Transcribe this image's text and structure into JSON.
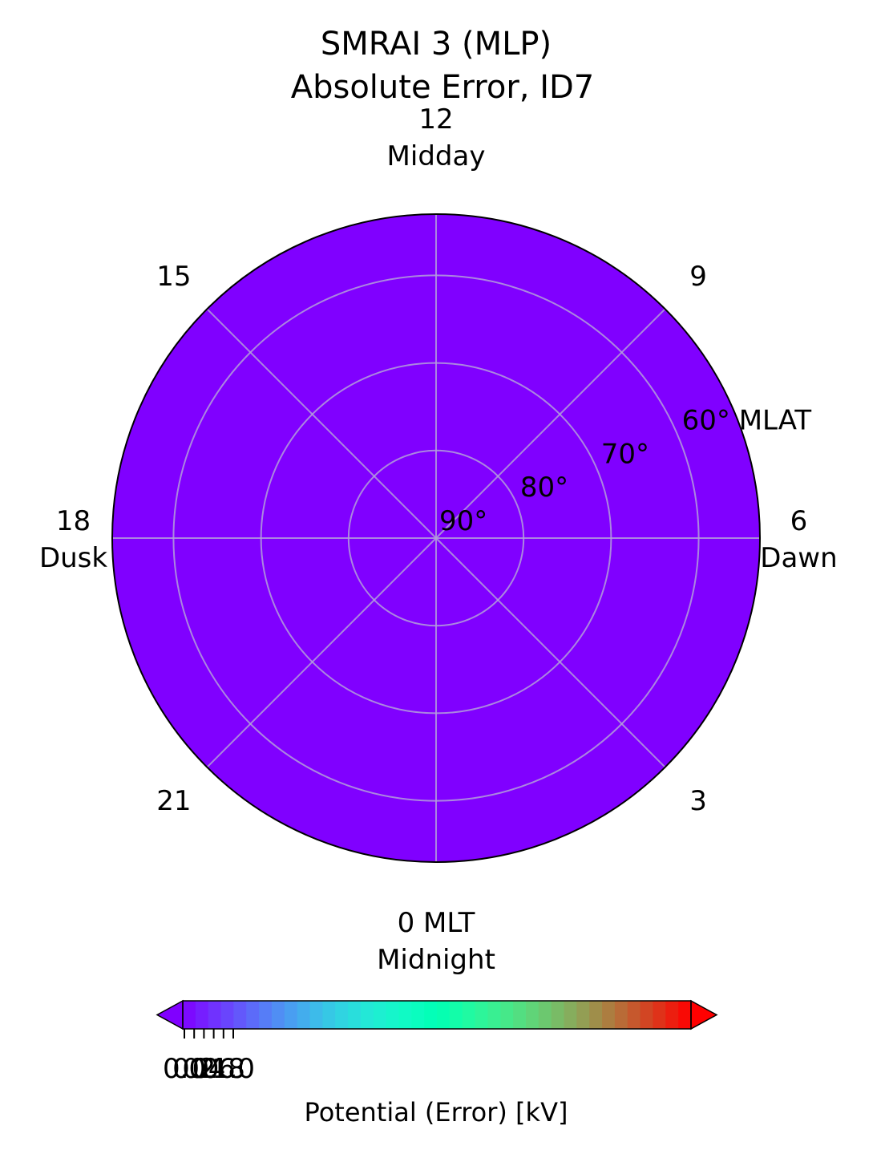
{
  "chart_data": {
    "type": "heatmap",
    "title_line1": "SMRAI 3 (MLP)",
    "title_line2": "Absolute Error, ID7",
    "fill_color": "#8000ff",
    "grid_color": "#b39ddb",
    "lat_rings": [
      {
        "value": 90,
        "label": "90°"
      },
      {
        "value": 80,
        "label": "80°"
      },
      {
        "value": 70,
        "label": "70°"
      },
      {
        "value": 60,
        "label": "60° MLAT"
      }
    ],
    "lat_range": [
      90,
      53
    ],
    "mlt_labels": [
      {
        "mlt": 12,
        "text": "12",
        "sub": "Midday"
      },
      {
        "mlt": 9,
        "text": "9",
        "sub": ""
      },
      {
        "mlt": 6,
        "text": "6",
        "sub": "Dawn"
      },
      {
        "mlt": 3,
        "text": "3",
        "sub": ""
      },
      {
        "mlt": 0,
        "text": "0 MLT",
        "sub": "Midnight"
      },
      {
        "mlt": 21,
        "text": "21",
        "sub": ""
      },
      {
        "mlt": 18,
        "text": "18",
        "sub": "Dusk"
      },
      {
        "mlt": 15,
        "text": "15",
        "sub": ""
      }
    ],
    "colorbar": {
      "label": "Potential (Error) [kV]",
      "colormap": "rainbow",
      "extend": "both",
      "tick_labels": [
        "0.0",
        "0.2",
        "0.4",
        "0.6",
        "0.8",
        "1.0"
      ],
      "tick_values": [
        0.0,
        0.2,
        0.4,
        0.6,
        0.8,
        1.0
      ]
    }
  }
}
